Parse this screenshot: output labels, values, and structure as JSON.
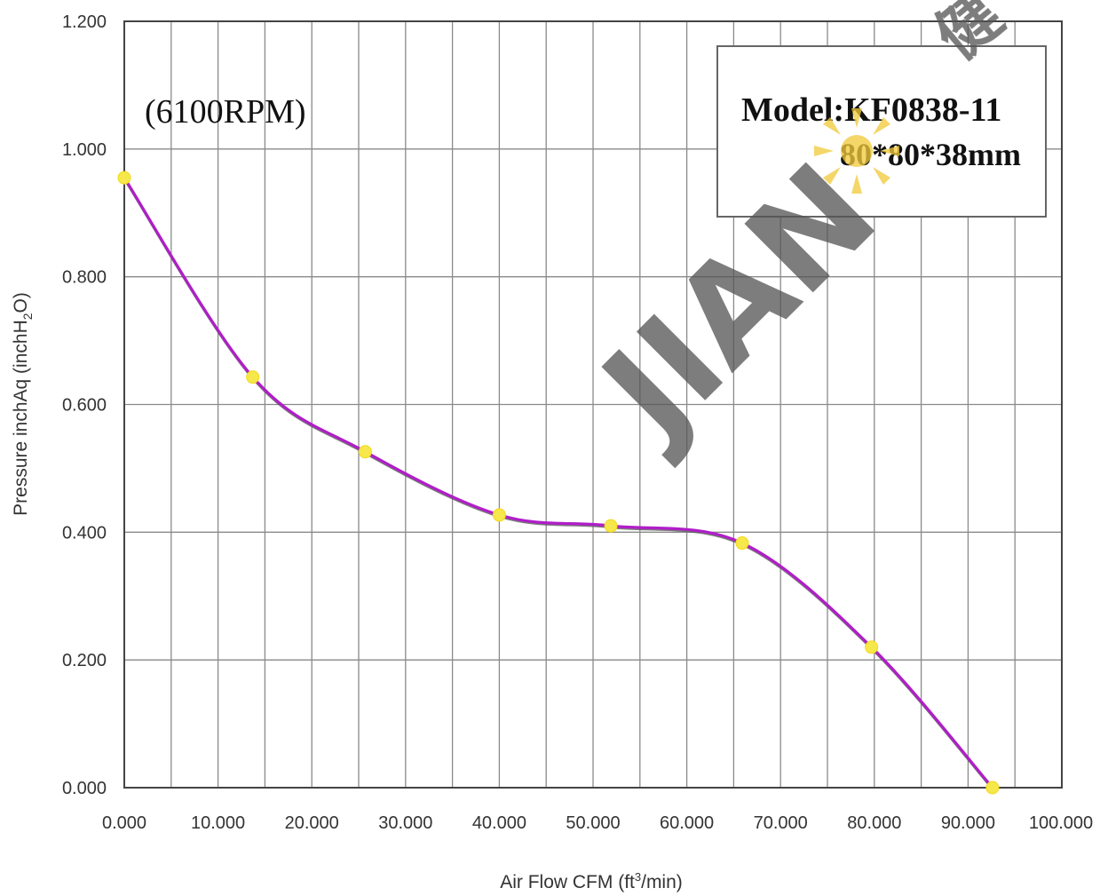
{
  "chart_data": {
    "type": "line",
    "annotation": "(6100RPM)",
    "legend_box": {
      "line1": "Model:KF0838-11",
      "line2": "80*80*38mm"
    },
    "xlabel_main": "Air Flow CFM (ft",
    "xlabel_sup": "3",
    "xlabel_end": "/min)",
    "ylabel_main": "Pressure inchAq (inchH",
    "ylabel_sub": "2",
    "ylabel_end": "O)",
    "xlim": [
      0,
      100
    ],
    "ylim": [
      0,
      1.2
    ],
    "x_ticks": [
      "0.000",
      "10.000",
      "20.000",
      "30.000",
      "40.000",
      "50.000",
      "60.000",
      "70.000",
      "80.000",
      "90.000",
      "100.000"
    ],
    "y_ticks": [
      "0.000",
      "0.200",
      "0.400",
      "0.600",
      "0.800",
      "1.000",
      "1.200"
    ],
    "grid": true,
    "series": [
      {
        "color": "#b01ec8",
        "marker_color": "#f6e84a",
        "x": [
          0.0,
          13.7,
          25.7,
          40.0,
          51.9,
          65.9,
          79.7,
          92.6
        ],
        "y": [
          0.955,
          0.643,
          0.526,
          0.427,
          0.41,
          0.383,
          0.22,
          0.0
        ]
      }
    ],
    "watermark": {
      "text": "JIAN",
      "cjk": "健"
    }
  }
}
